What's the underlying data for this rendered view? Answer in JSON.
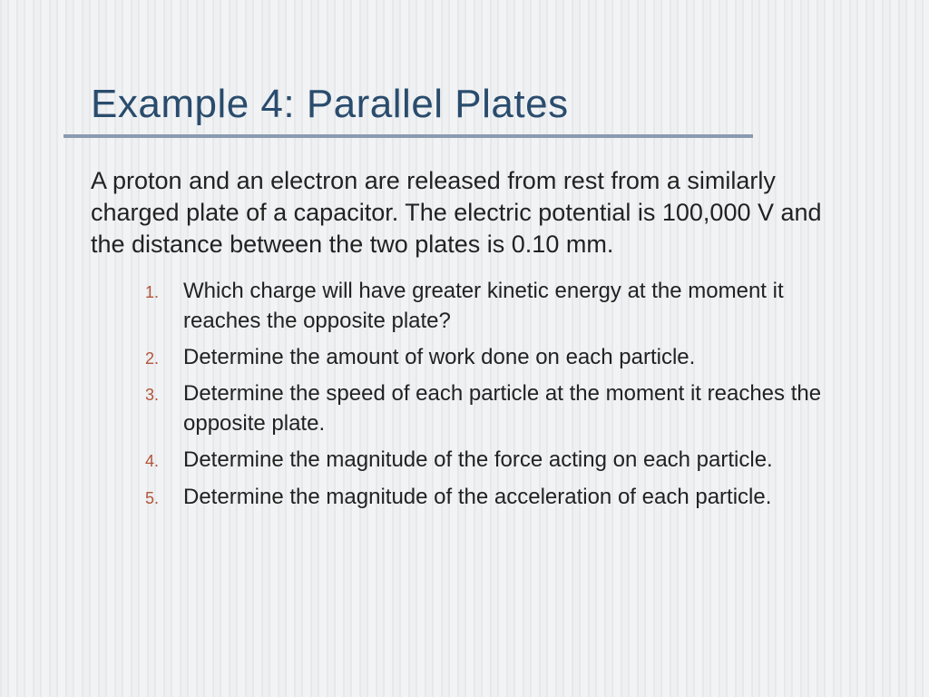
{
  "title": "Example 4: Parallel Plates",
  "intro": "A proton and an electron are released from rest from a similarly charged plate of a capacitor.  The electric potential is 100,000 V and the distance between the two plates is 0.10 mm.",
  "questions": [
    "Which charge will have greater kinetic energy at the moment it reaches the opposite plate?",
    "Determine the amount of work done on each particle.",
    "Determine the speed of each particle at the moment it reaches the opposite plate.",
    "Determine the magnitude of the force acting on each particle.",
    "Determine the magnitude of the acceleration of each particle."
  ],
  "colors": {
    "title": "#2a4c6d",
    "rule": "#8a9bb0",
    "number": "#b2553a",
    "text": "#222"
  },
  "fonts": {
    "title_size": 44,
    "intro_size": 27,
    "item_size": 24,
    "number_size": 18,
    "family": "Verdana"
  }
}
